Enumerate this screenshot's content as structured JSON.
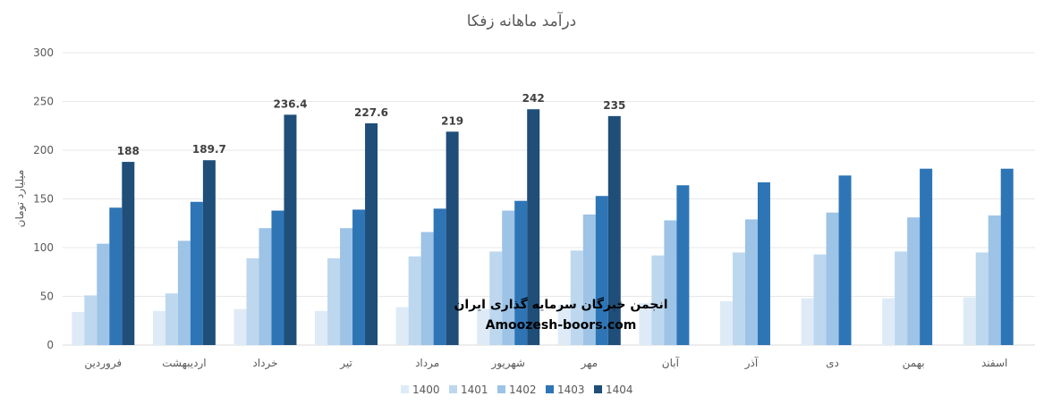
{
  "chart_data": {
    "type": "bar",
    "title": "درآمد ماهانه زفکا",
    "ylabel": "میلیارد تومان",
    "xlabel": "",
    "ylim": [
      0,
      300
    ],
    "yticks": [
      0,
      50,
      100,
      150,
      200,
      250,
      300
    ],
    "grid": true,
    "legend_position": "bottom",
    "categories": [
      "فروردین",
      "اردیبهشت",
      "خرداد",
      "تیر",
      "مرداد",
      "شهریور",
      "مهر",
      "آبان",
      "آذر",
      "دی",
      "بهمن",
      "اسفند"
    ],
    "series": [
      {
        "name": "1400",
        "color": "#deebf7",
        "values": [
          34,
          35,
          37,
          35,
          39,
          37,
          41,
          43,
          45,
          48,
          48,
          49
        ]
      },
      {
        "name": "1401",
        "color": "#bdd7ee",
        "values": [
          51,
          53,
          89,
          89,
          91,
          96,
          97,
          92,
          95,
          93,
          96,
          95
        ]
      },
      {
        "name": "1402",
        "color": "#9dc3e6",
        "values": [
          104,
          107,
          120,
          120,
          116,
          138,
          134,
          128,
          129,
          136,
          131,
          133
        ]
      },
      {
        "name": "1403",
        "color": "#2e75b6",
        "values": [
          141,
          147,
          138,
          139,
          140,
          148,
          153,
          164,
          167,
          174,
          181,
          181
        ]
      },
      {
        "name": "1404",
        "color": "#1f4e79",
        "values": [
          188,
          189.7,
          236.4,
          227.6,
          219,
          242,
          235,
          null,
          null,
          null,
          null,
          null
        ]
      }
    ],
    "data_labels": {
      "series": "1404",
      "values": [
        "188",
        "189.7",
        "236.4",
        "227.6",
        "219",
        "242",
        "235"
      ]
    }
  },
  "watermark": {
    "line1": "انجمن خبرگان سرمایه گذاری ایران",
    "line2": "Amoozesh-boors.com"
  }
}
